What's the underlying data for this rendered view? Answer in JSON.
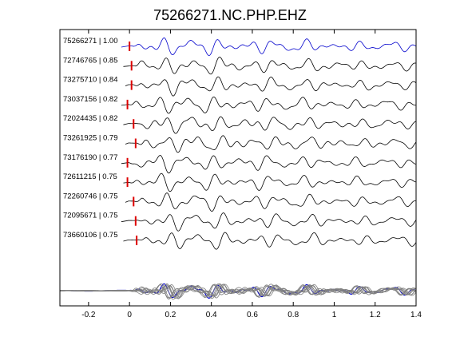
{
  "chart_data": {
    "type": "line",
    "title": "75266271.NC.PHP.EHZ",
    "xlabel": "",
    "ylabel": "",
    "xlim": [
      -0.34,
      1.4
    ],
    "x_ticks": [
      -0.2,
      0,
      0.2,
      0.4,
      0.6,
      0.8,
      1,
      1.2,
      1.4
    ],
    "x_tick_labels": [
      "-0.2",
      "0",
      "0.2",
      "0.4",
      "0.6",
      "0.8",
      "1",
      "1.2",
      "1.4"
    ],
    "grid": false,
    "legend": "none",
    "colors": {
      "reference": "#0000cc",
      "trace": "#000000",
      "pick": "#dd0000",
      "stack": "#808080"
    },
    "traces": [
      {
        "label": "75266271 | 1.00",
        "id": "75266271",
        "correlation": 1.0,
        "pick_time": 0.0,
        "reference": true
      },
      {
        "label": "72746765 | 0.85",
        "id": "72746765",
        "correlation": 0.85,
        "pick_time": 0.01
      },
      {
        "label": "73275710 | 0.84",
        "id": "73275710",
        "correlation": 0.84,
        "pick_time": 0.01
      },
      {
        "label": "73037156 | 0.82",
        "id": "73037156",
        "correlation": 0.82,
        "pick_time": -0.01
      },
      {
        "label": "72024435 | 0.82",
        "id": "72024435",
        "correlation": 0.82,
        "pick_time": 0.02
      },
      {
        "label": "73261925 | 0.79",
        "id": "73261925",
        "correlation": 0.79,
        "pick_time": 0.03
      },
      {
        "label": "73176190 | 0.77",
        "id": "73176190",
        "correlation": 0.77,
        "pick_time": -0.01
      },
      {
        "label": "72611215 | 0.75",
        "id": "72611215",
        "correlation": 0.75,
        "pick_time": -0.01
      },
      {
        "label": "72260746 | 0.75",
        "id": "72260746",
        "correlation": 0.75,
        "pick_time": 0.02
      },
      {
        "label": "72095671 | 0.75",
        "id": "72095671",
        "correlation": 0.75,
        "pick_time": 0.03
      },
      {
        "label": "73660106 | 0.75",
        "id": "73660106",
        "correlation": 0.75,
        "pick_time": 0.035
      }
    ]
  }
}
